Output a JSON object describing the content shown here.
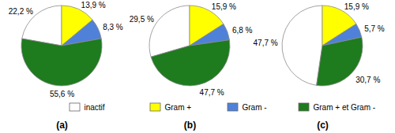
{
  "chart_data": [
    {
      "type": "pie",
      "title": "(a)",
      "categories": [
        "inactif",
        "Gram +",
        "Gram -",
        "Gram + et Gram -"
      ],
      "values": [
        22.2,
        13.9,
        8.3,
        55.6
      ],
      "value_labels": [
        "22,2 %",
        "13,9 %",
        "8,3 %",
        "55,6 %"
      ],
      "colors": [
        "#ffffff",
        "#ffff00",
        "#4f81d9",
        "#1e7b1e"
      ],
      "data_labels": true,
      "legend": "bottom"
    },
    {
      "type": "pie",
      "title": "(b)",
      "categories": [
        "inactif",
        "Gram +",
        "Gram -",
        "Gram + et Gram -"
      ],
      "values": [
        29.5,
        15.9,
        6.8,
        47.7
      ],
      "value_labels": [
        "29,5 %",
        "15,9 %",
        "6,8 %",
        "47,7 %"
      ],
      "colors": [
        "#ffffff",
        "#ffff00",
        "#4f81d9",
        "#1e7b1e"
      ],
      "data_labels": true,
      "legend": "bottom"
    },
    {
      "type": "pie",
      "title": "(c)",
      "categories": [
        "inactif",
        "Gram +",
        "Gram -",
        "Gram + et Gram -"
      ],
      "values": [
        47.7,
        15.9,
        5.7,
        30.7
      ],
      "value_labels": [
        "47,7 %",
        "15,9 %",
        "5,7 %",
        "30,7 %"
      ],
      "colors": [
        "#ffffff",
        "#ffff00",
        "#4f81d9",
        "#1e7b1e"
      ],
      "data_labels": true,
      "legend": "bottom"
    }
  ]
}
